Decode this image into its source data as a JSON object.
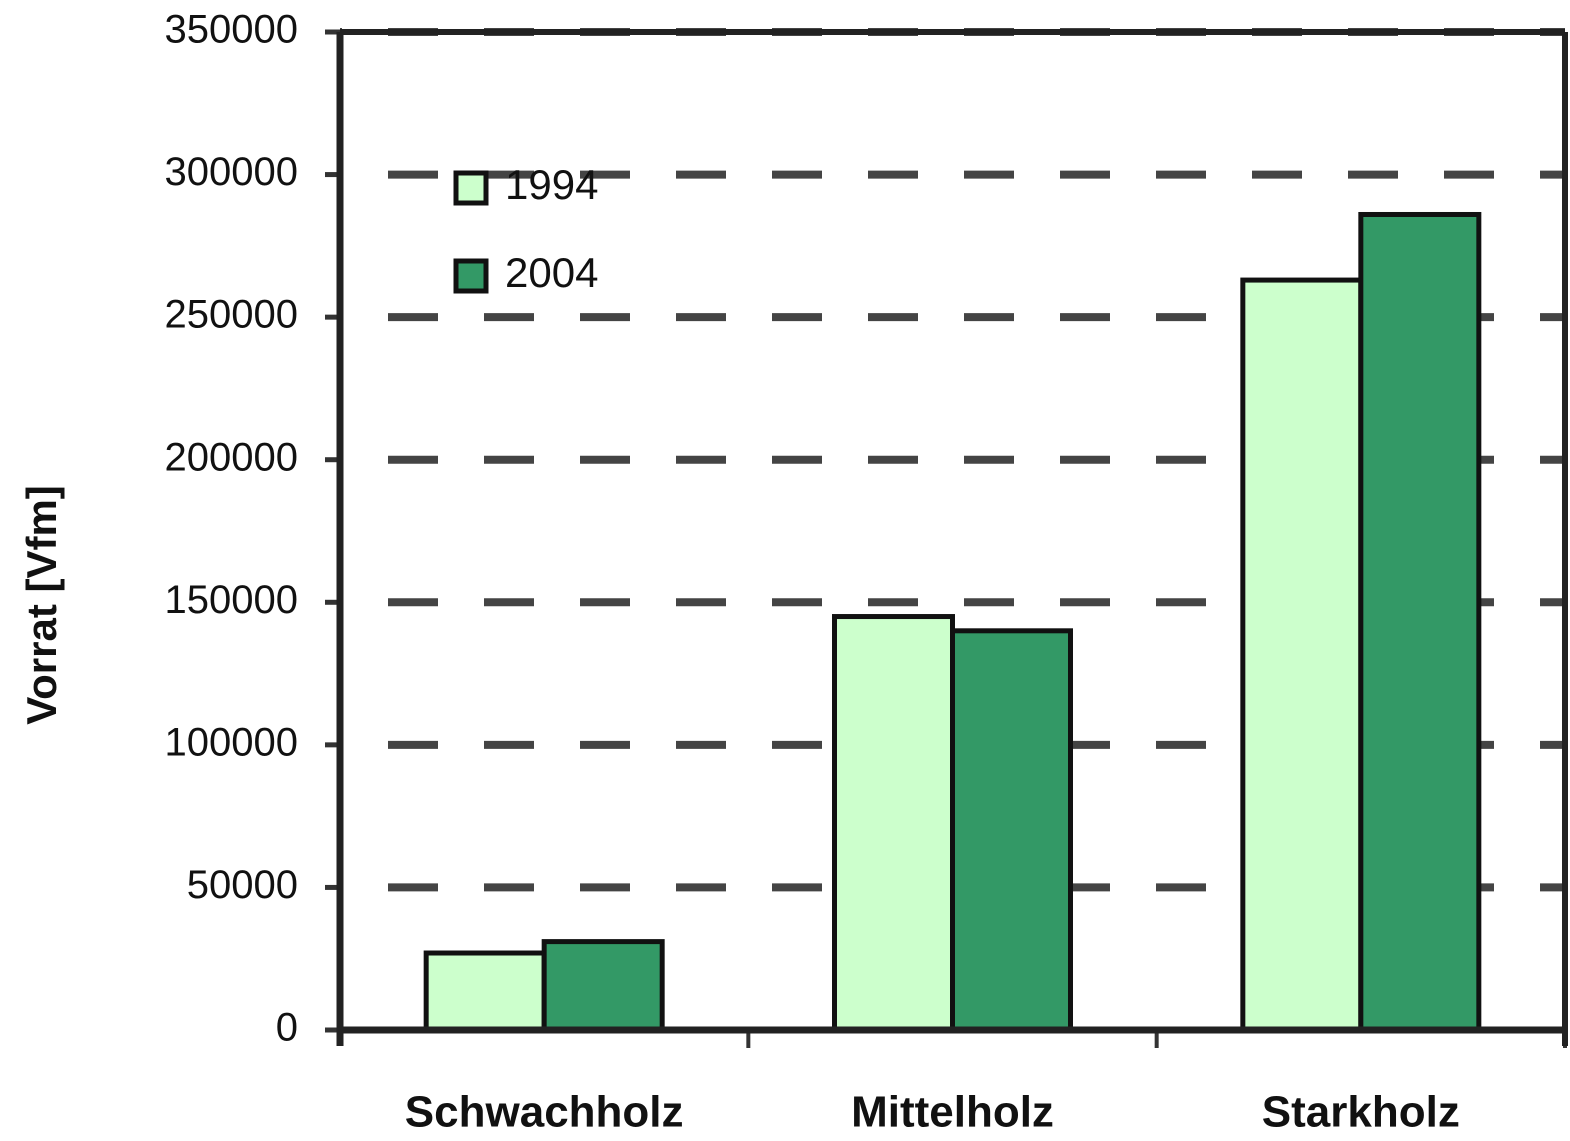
{
  "chart_data": {
    "type": "bar",
    "y_label": "Vorrat [Vfm]",
    "categories": [
      "Schwachholz",
      "Mittelholz",
      "Starkholz"
    ],
    "series": [
      {
        "name": "1994",
        "color": "#ccffcc",
        "values": [
          27000,
          145000,
          263000
        ]
      },
      {
        "name": "2004",
        "color": "#339966",
        "values": [
          31000,
          140000,
          286000
        ]
      }
    ],
    "ylim": [
      0,
      350000
    ],
    "yticks": [
      0,
      50000,
      100000,
      150000,
      200000,
      250000,
      300000,
      350000
    ],
    "grid": true,
    "legend": "upper left"
  }
}
